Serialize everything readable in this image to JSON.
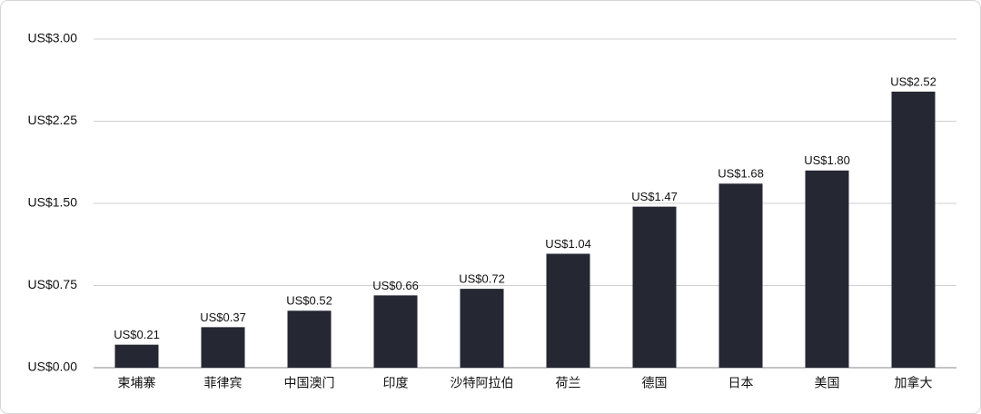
{
  "chart_data": {
    "type": "bar",
    "categories": [
      "柬埔寨",
      "菲律宾",
      "中国澳门",
      "印度",
      "沙特阿拉伯",
      "荷兰",
      "德国",
      "日本",
      "美国",
      "加拿大"
    ],
    "values": [
      0.21,
      0.37,
      0.52,
      0.66,
      0.72,
      1.04,
      1.47,
      1.68,
      1.8,
      2.52
    ],
    "value_labels": [
      "US$0.21",
      "US$0.37",
      "US$0.52",
      "US$0.66",
      "US$0.72",
      "US$1.04",
      "US$1.47",
      "US$1.68",
      "US$1.80",
      "US$2.52"
    ],
    "color": "#252733",
    "ylim": [
      0,
      3
    ],
    "yticks": [
      {
        "value": 0,
        "label": "US$0.00"
      },
      {
        "value": 0.75,
        "label": "US$0.75"
      },
      {
        "value": 1.5,
        "label": "US$1.50"
      },
      {
        "value": 2.25,
        "label": "US$2.25"
      },
      {
        "value": 3,
        "label": "US$3.00"
      }
    ],
    "grid": true
  }
}
